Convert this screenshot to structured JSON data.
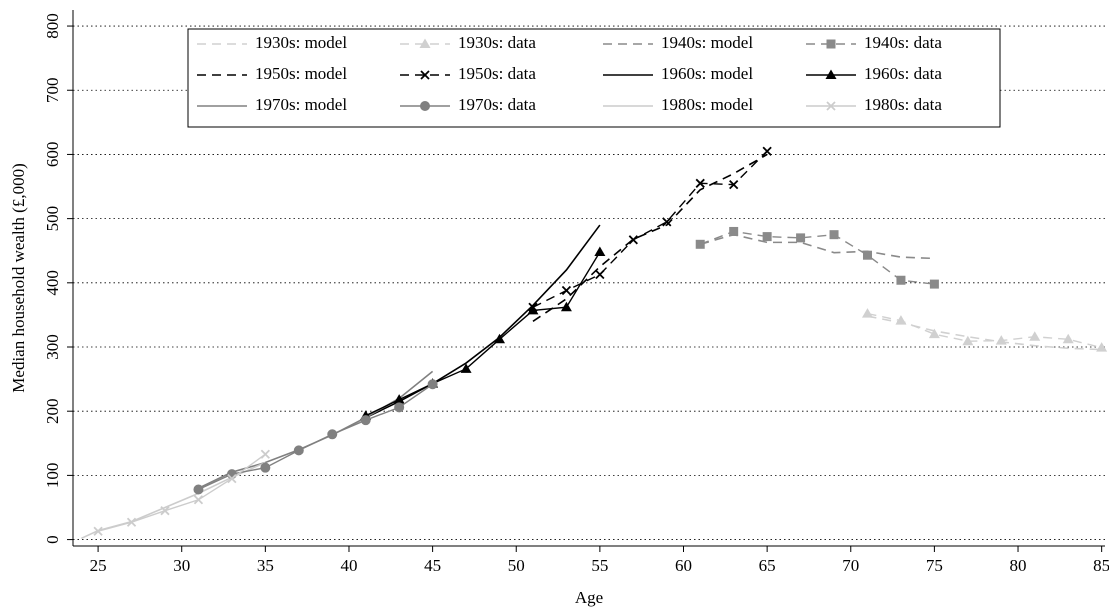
{
  "chart_data": {
    "type": "line",
    "title": "",
    "xlabel": "Age",
    "ylabel": "Median household wealth (£,000)",
    "xlim": [
      23.5,
      85.2
    ],
    "ylim": [
      -10,
      825
    ],
    "xticks": [
      25,
      30,
      35,
      40,
      45,
      50,
      55,
      60,
      65,
      70,
      75,
      80,
      85
    ],
    "yticks": [
      0,
      100,
      200,
      300,
      400,
      500,
      600,
      700,
      800
    ],
    "grid": "horizontal dotted",
    "legend_position": "top-center",
    "series": [
      {
        "name": "1930s: model",
        "kind": "model",
        "color": "#d0d0d0",
        "dash": "dashed",
        "marker": "none",
        "x": [
          71,
          73,
          75,
          77,
          79,
          81,
          83,
          85
        ],
        "y": [
          348,
          338,
          325,
          316,
          308,
          302,
          298,
          296
        ]
      },
      {
        "name": "1930s: data",
        "kind": "data",
        "color": "#d0d0d0",
        "dash": "dashed",
        "marker": "triangle",
        "x": [
          71,
          73,
          75,
          77,
          79,
          81,
          83,
          85
        ],
        "y": [
          352,
          341,
          320,
          309,
          310,
          316,
          312,
          299
        ]
      },
      {
        "name": "1940s: model",
        "kind": "model",
        "color": "#8a8a8a",
        "dash": "dashed",
        "marker": "none",
        "x": [
          61,
          63,
          65,
          67,
          69,
          71,
          73,
          75
        ],
        "y": [
          460,
          475,
          463,
          463,
          447,
          449,
          440,
          438
        ]
      },
      {
        "name": "1940s: data",
        "kind": "data",
        "color": "#8a8a8a",
        "dash": "dashed",
        "marker": "square",
        "x": [
          61,
          63,
          65,
          67,
          69,
          71,
          73,
          75
        ],
        "y": [
          460,
          480,
          472,
          470,
          475,
          443,
          404,
          398
        ]
      },
      {
        "name": "1950s: model",
        "kind": "model",
        "color": "#000000",
        "dash": "dashed",
        "marker": "none",
        "x": [
          51,
          53,
          55,
          57,
          59,
          61,
          63,
          65
        ],
        "y": [
          340,
          375,
          425,
          468,
          490,
          545,
          570,
          600
        ]
      },
      {
        "name": "1950s: data",
        "kind": "data",
        "color": "#000000",
        "dash": "dashed",
        "marker": "x",
        "x": [
          51,
          53,
          55,
          57,
          59,
          61,
          63,
          65
        ],
        "y": [
          362,
          388,
          413,
          467,
          495,
          555,
          553,
          605
        ]
      },
      {
        "name": "1960s: model",
        "kind": "model",
        "color": "#000000",
        "dash": "solid",
        "marker": "none",
        "x": [
          41,
          43,
          45,
          47,
          49,
          51,
          53,
          55
        ],
        "y": [
          190,
          215,
          243,
          275,
          315,
          365,
          420,
          490
        ]
      },
      {
        "name": "1960s: data",
        "kind": "data",
        "color": "#000000",
        "dash": "solid",
        "marker": "triangle",
        "x": [
          41,
          43,
          45,
          47,
          49,
          51,
          53,
          55
        ],
        "y": [
          193,
          218,
          243,
          266,
          312,
          357,
          362,
          448
        ]
      },
      {
        "name": "1970s: model",
        "kind": "model",
        "color": "#808080",
        "dash": "solid",
        "marker": "none",
        "x": [
          31,
          33,
          35,
          37,
          39,
          41,
          43,
          45
        ],
        "y": [
          80,
          105,
          120,
          140,
          163,
          190,
          220,
          262
        ]
      },
      {
        "name": "1970s: data",
        "kind": "data",
        "color": "#808080",
        "dash": "solid",
        "marker": "circle",
        "x": [
          31,
          33,
          35,
          37,
          39,
          41,
          43,
          45
        ],
        "y": [
          78,
          102,
          112,
          139,
          164,
          186,
          206,
          242
        ]
      },
      {
        "name": "1980s: model",
        "kind": "model",
        "color": "#cccccc",
        "dash": "solid",
        "marker": "none",
        "x": [
          24,
          25,
          27,
          29,
          31,
          33,
          35
        ],
        "y": [
          2,
          14,
          28,
          50,
          72,
          97,
          120
        ]
      },
      {
        "name": "1980s: data",
        "kind": "data",
        "color": "#cccccc",
        "dash": "solid",
        "marker": "x",
        "x": [
          25,
          27,
          29,
          31,
          33,
          35
        ],
        "y": [
          13,
          27,
          45,
          62,
          95,
          133
        ]
      }
    ]
  }
}
